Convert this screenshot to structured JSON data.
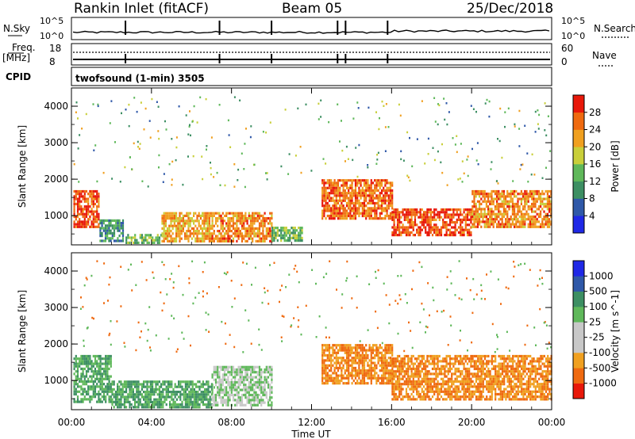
{
  "header": {
    "site": "Rankin Inlet (fitACF)",
    "beam": "Beam 05",
    "date": "25/Dec/2018"
  },
  "noise_panel": {
    "left_label": "N.Sky",
    "right_label": "N.Search",
    "left_ticks": [
      "10^5",
      "10^0"
    ],
    "right_ticks": [
      "10^5",
      "10^0"
    ]
  },
  "freq_panel": {
    "left_label_1": "Freq.",
    "left_label_2": "[MHz]",
    "right_label": "Nave",
    "left_ticks": [
      "18",
      "8"
    ],
    "right_ticks": [
      "60",
      "0"
    ]
  },
  "cpid_panel": {
    "label": "CPID",
    "mode_text": "twofsound (1-min) 3505"
  },
  "colors": {
    "power_scale": [
      "#1f28e6",
      "#2f58a8",
      "#3d8f63",
      "#5fb85a",
      "#c9cf3a",
      "#f0a020",
      "#ef6a10",
      "#e8180a"
    ],
    "velocity_scale": [
      "#e8180a",
      "#ef6a10",
      "#f0a020",
      "#c8c8c8",
      "#c8c8c8",
      "#5fb85a",
      "#3d8f63",
      "#2f58a8",
      "#1f28e6"
    ]
  },
  "chart_data": [
    {
      "type": "heatmap",
      "name": "power",
      "ylabel": "Slant Range [km]",
      "yticks": [
        "1000",
        "2000",
        "3000",
        "4000"
      ],
      "ylim": [
        200,
        4500
      ],
      "xlim": [
        0,
        24
      ],
      "colorbar": {
        "label": "Power [dB]",
        "ticks": [
          "4",
          "8",
          "12",
          "16",
          "20",
          "24",
          "28"
        ],
        "range": [
          0,
          32
        ]
      },
      "features": [
        {
          "t0": 0.1,
          "t1": 1.4,
          "r0": 700,
          "r1": 1700,
          "value": 28
        },
        {
          "t0": 1.4,
          "t1": 2.6,
          "r0": 300,
          "r1": 900,
          "value": 10
        },
        {
          "t0": 2.7,
          "t1": 4.5,
          "r0": 250,
          "r1": 500,
          "value": 14
        },
        {
          "t0": 4.5,
          "t1": 7.0,
          "r0": 300,
          "r1": 1100,
          "value": 22
        },
        {
          "t0": 7.0,
          "t1": 10.0,
          "r0": 300,
          "r1": 1100,
          "value": 24
        },
        {
          "t0": 10.0,
          "t1": 11.5,
          "r0": 300,
          "r1": 700,
          "value": 14
        },
        {
          "t0": 12.5,
          "t1": 16.0,
          "r0": 900,
          "r1": 2000,
          "value": 26
        },
        {
          "t0": 16.0,
          "t1": 20.0,
          "r0": 500,
          "r1": 1200,
          "value": 28
        },
        {
          "t0": 20.0,
          "t1": 24.0,
          "r0": 700,
          "r1": 1700,
          "value": 24
        }
      ]
    },
    {
      "type": "heatmap",
      "name": "velocity",
      "ylabel": "Slant Range [km]",
      "yticks": [
        "1000",
        "2000",
        "3000",
        "4000"
      ],
      "ylim": [
        200,
        4500
      ],
      "xlim": [
        0,
        24
      ],
      "xlabel": "Time UT",
      "xticks": [
        "00:00",
        "04:00",
        "08:00",
        "12:00",
        "16:00",
        "20:00",
        "00:00"
      ],
      "colorbar": {
        "label": "Velocity [m s^-1]",
        "ticks": [
          "1000",
          "500",
          "100",
          "25",
          "-25",
          "-100",
          "-500",
          "-1000"
        ]
      },
      "features": [
        {
          "t0": 0.1,
          "t1": 2.0,
          "r0": 400,
          "r1": 1700,
          "value": 100
        },
        {
          "t0": 2.0,
          "t1": 7.0,
          "r0": 250,
          "r1": 1000,
          "value": 100
        },
        {
          "t0": 7.0,
          "t1": 10.0,
          "r0": 300,
          "r1": 1400,
          "value": 25
        },
        {
          "t0": 12.5,
          "t1": 16.0,
          "r0": 900,
          "r1": 2000,
          "value": -100
        },
        {
          "t0": 16.0,
          "t1": 24.0,
          "r0": 500,
          "r1": 1700,
          "value": -100
        }
      ]
    }
  ]
}
